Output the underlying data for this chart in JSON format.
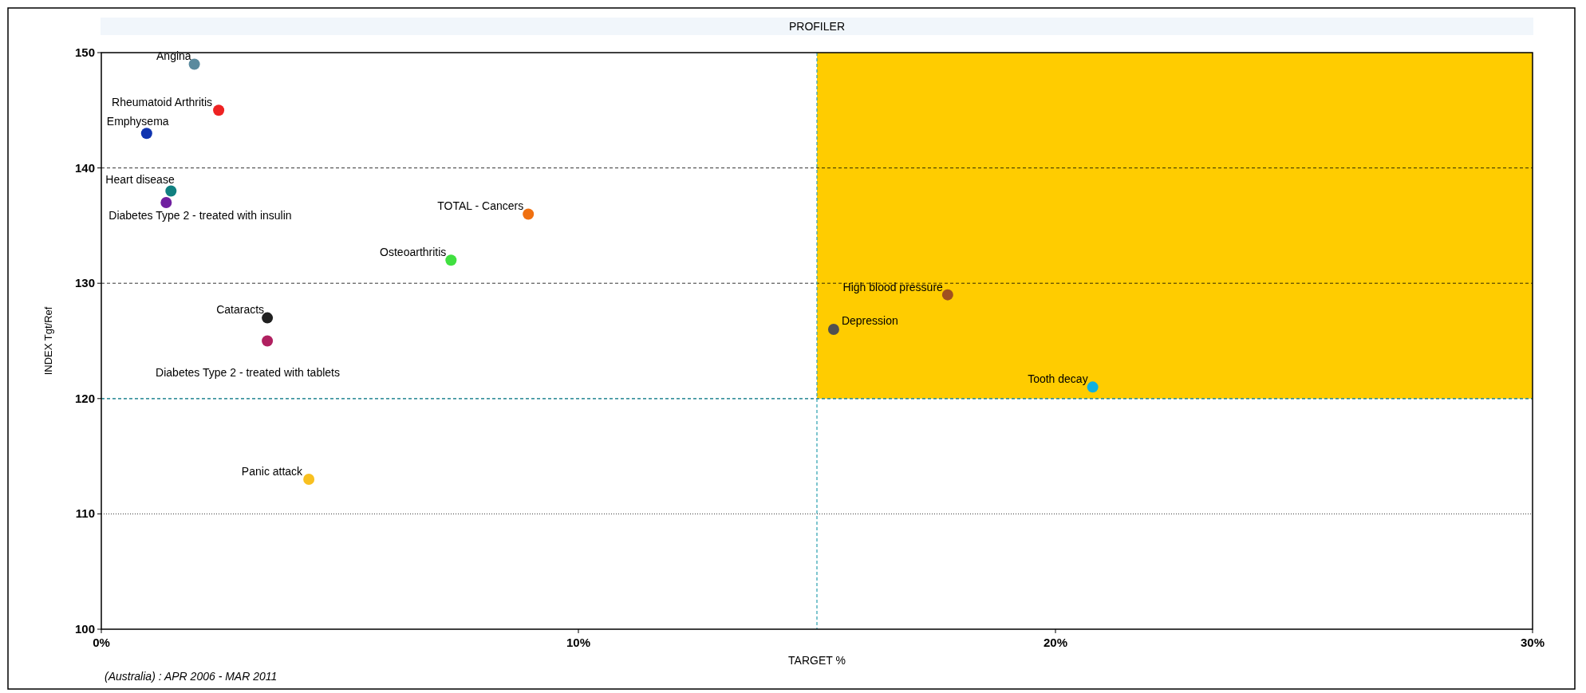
{
  "chart_data": {
    "type": "scatter",
    "title": "PROFILER",
    "xlabel": "TARGET %",
    "ylabel": "INDEX Tgt/Ref",
    "xlim": [
      0,
      30
    ],
    "xticks": [
      {
        "value": 0,
        "label": "0%"
      },
      {
        "value": 10,
        "label": "10%"
      },
      {
        "value": 20,
        "label": "20%"
      },
      {
        "value": 30,
        "label": "30%"
      }
    ],
    "ylim": [
      100,
      150
    ],
    "yticks": [
      100,
      110,
      120,
      130,
      140,
      150
    ],
    "grid": "y",
    "marker": "circle",
    "ref_lines": [
      {
        "axis": "x",
        "value": 15,
        "color": "#2aa0b0",
        "line_style": "dashed"
      },
      {
        "axis": "y",
        "value": 120,
        "color": "#2aa0b0",
        "line_style": "dashed"
      }
    ],
    "series": [
      {
        "name": "Angina",
        "color": "#5a8a9e",
        "x": [
          1.95
        ],
        "values": [
          149
        ]
      },
      {
        "name": "Rheumatoid Arthritis",
        "color": "#ee2222",
        "x": [
          2.46
        ],
        "values": [
          145
        ]
      },
      {
        "name": "Emphysema",
        "color": "#1034b0",
        "x": [
          0.95
        ],
        "values": [
          143
        ]
      },
      {
        "name": "Heart disease",
        "color": "#108080",
        "x": [
          1.46
        ],
        "values": [
          138
        ]
      },
      {
        "name": "Diabetes Type 2 - treated with insulin",
        "color": "#7020a0",
        "x": [
          1.36
        ],
        "values": [
          137
        ]
      },
      {
        "name": "TOTAL - Cancers",
        "color": "#f07010",
        "x": [
          8.95
        ],
        "values": [
          136
        ]
      },
      {
        "name": "Osteoarthritis",
        "color": "#40e040",
        "x": [
          7.33
        ],
        "values": [
          132
        ]
      },
      {
        "name": "Cataracts",
        "color": "#202020",
        "x": [
          3.48
        ],
        "values": [
          127
        ]
      },
      {
        "name": "Diabetes Type 2 - treated with tablets",
        "color": "#b02060",
        "x": [
          3.48
        ],
        "values": [
          125
        ]
      },
      {
        "name": "Panic attack",
        "color": "#f8c020",
        "x": [
          4.35
        ],
        "values": [
          113
        ]
      },
      {
        "name": "High blood pressure",
        "color": "#a05020",
        "x": [
          17.74
        ],
        "values": [
          129
        ]
      },
      {
        "name": "Depression",
        "color": "#505050",
        "x": [
          15.35
        ],
        "values": [
          126
        ]
      },
      {
        "name": "Tooth decay",
        "color": "#10b0e0",
        "x": [
          20.78
        ],
        "values": [
          121
        ]
      }
    ],
    "annotations": [
      "(Australia) : APR 2006 - MAR 2011"
    ]
  }
}
